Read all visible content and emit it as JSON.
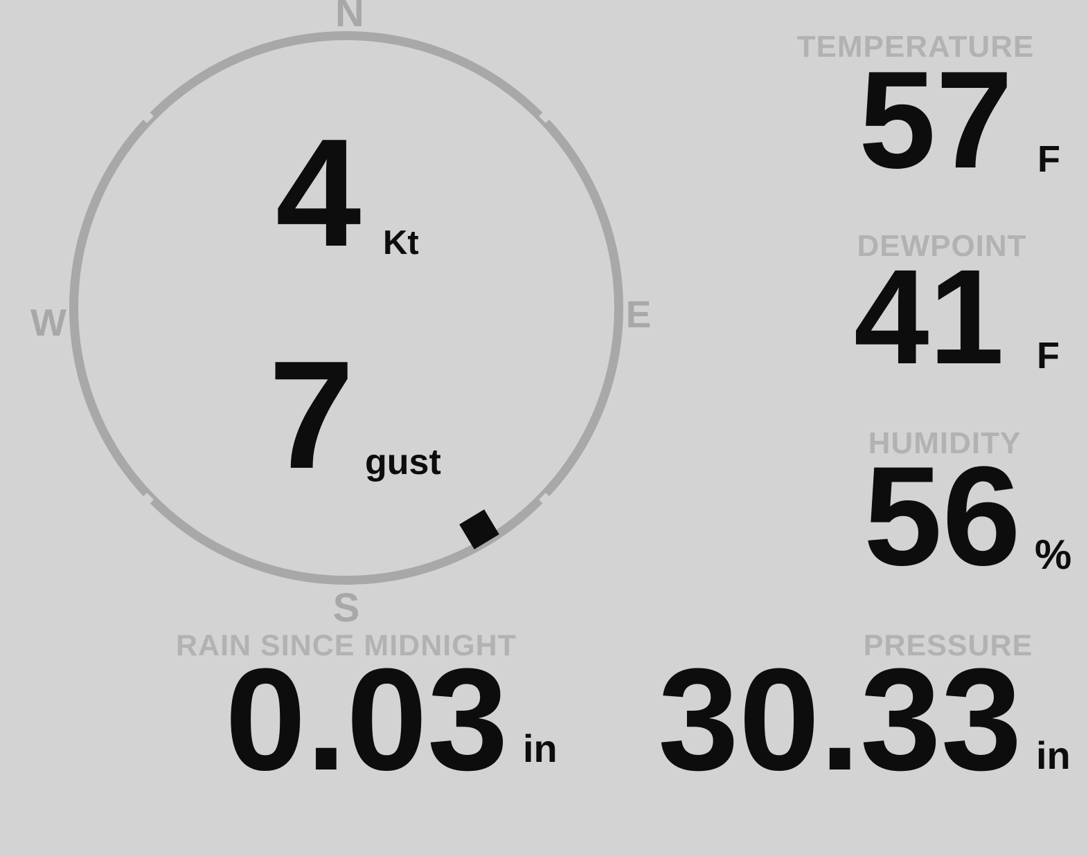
{
  "colors": {
    "background": "#d3d3d3",
    "ring_gray": "#a8a8a8",
    "label_gray": "#b2b2b2",
    "value_black": "#0d0d0d"
  },
  "compass": {
    "cardinals": {
      "n": "N",
      "e": "E",
      "s": "S",
      "w": "W"
    },
    "speed": {
      "value": "4",
      "unit": "Kt"
    },
    "gust": {
      "value": "7",
      "unit": "gust"
    },
    "marker_bearing_deg": 149
  },
  "metrics": {
    "temperature": {
      "label": "TEMPERATURE",
      "value": "57",
      "unit": "F"
    },
    "dewpoint": {
      "label": "DEWPOINT",
      "value": "41",
      "unit": "F"
    },
    "humidity": {
      "label": "HUMIDITY",
      "value": "56",
      "unit": "%"
    },
    "rain": {
      "label": "RAIN SINCE MIDNIGHT",
      "value": "0.03",
      "unit": "in"
    },
    "pressure": {
      "label": "PRESSURE",
      "value": "30.33",
      "unit": "in"
    }
  }
}
